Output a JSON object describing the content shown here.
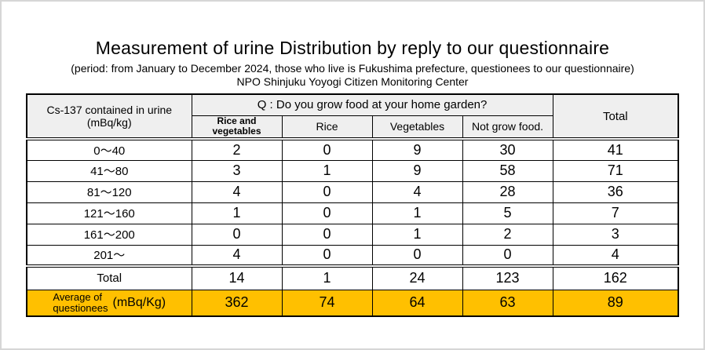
{
  "page": {
    "title": "Measurement of urine Distribution by reply to our questionnaire",
    "subtitle": "(period: from January to December 2024, those who live is Fukushima prefecture, questionees to our questionnaire)",
    "organization": "NPO Shinjuku Yoyogi Citizen Monitoring Center"
  },
  "colors": {
    "highlight_row": "#FFC000",
    "header_bg": "#EFEFEF",
    "table_border": "#000000",
    "page_border": "#D6D6D6"
  },
  "table": {
    "corner_header": "Cs-137 contained in urine\n(mBq/kg)",
    "question_header": "Q : Do you grow food at your home garden?",
    "total_header": "Total",
    "answer_columns": [
      "Rice and\nvegetables",
      "Rice",
      "Vegetables",
      "Not grow food."
    ],
    "rows": [
      {
        "label": "0〜40",
        "values": [
          "2",
          "0",
          "9",
          "30"
        ],
        "total": "41"
      },
      {
        "label": "41〜80",
        "values": [
          "3",
          "1",
          "9",
          "58"
        ],
        "total": "71"
      },
      {
        "label": "81〜120",
        "values": [
          "4",
          "0",
          "4",
          "28"
        ],
        "total": "36"
      },
      {
        "label": "121〜160",
        "values": [
          "1",
          "0",
          "1",
          "5"
        ],
        "total": "7"
      },
      {
        "label": "161〜200",
        "values": [
          "0",
          "0",
          "1",
          "2"
        ],
        "total": "3"
      },
      {
        "label": "201〜",
        "values": [
          "4",
          "0",
          "0",
          "0"
        ],
        "total": "4"
      }
    ],
    "total_row": {
      "label": "Total",
      "values": [
        "14",
        "1",
        "24",
        "123"
      ],
      "total": "162"
    },
    "average_row": {
      "label": "Average of\nquestionees",
      "unit": "(mBq/Kg)",
      "values": [
        "362",
        "74",
        "64",
        "63"
      ],
      "total": "89"
    }
  }
}
